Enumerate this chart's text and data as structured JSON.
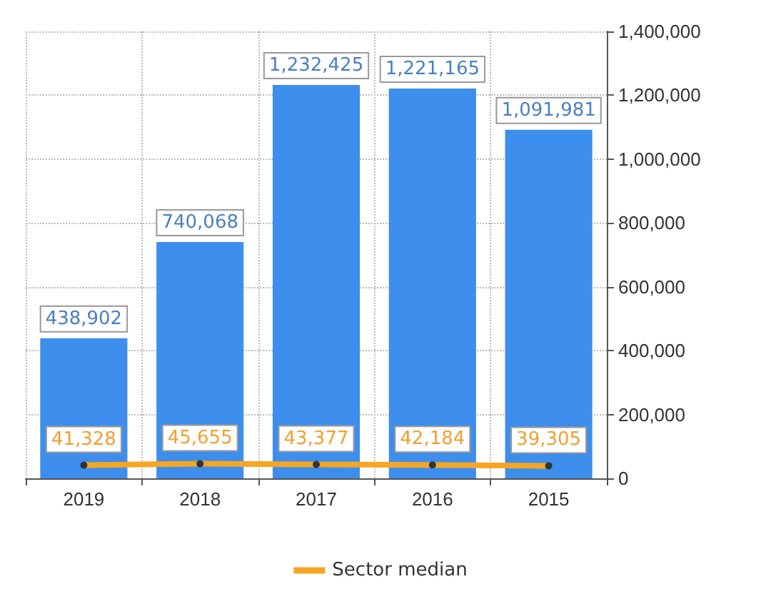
{
  "chart_data": {
    "type": "bar",
    "categories": [
      "2019",
      "2018",
      "2017",
      "2016",
      "2015"
    ],
    "series": [
      {
        "color": "#3d8eed",
        "values": [
          438902,
          740068,
          1232425,
          1221165,
          1091981
        ],
        "value_labels": [
          "438,902",
          "740,068",
          "1,232,425",
          "1,221,165",
          "1,091,981"
        ]
      },
      {
        "type": "line",
        "name": "Sector median",
        "color": "#f5a623",
        "values": [
          41328,
          45655,
          43377,
          42184,
          39305
        ],
        "value_labels": [
          "41,328",
          "45,655",
          "43,377",
          "42,184",
          "39,305"
        ]
      }
    ],
    "ylim": [
      0,
      1400000
    ],
    "yticks": [
      0,
      {
        "value": 200000,
        "label": "200,000"
      },
      {
        "value": 400000,
        "label": "400,000"
      },
      {
        "value": 600000,
        "label": "600,000"
      },
      {
        "value": 800000,
        "label": "800,000"
      },
      {
        "value": 1000000,
        "label": "1,000,000"
      },
      {
        "value": 1200000,
        "label": "1,200,000"
      },
      {
        "value": 1400000,
        "label": "1,400,000"
      }
    ],
    "grid": true,
    "legend": "bottom",
    "marker": "circle"
  }
}
